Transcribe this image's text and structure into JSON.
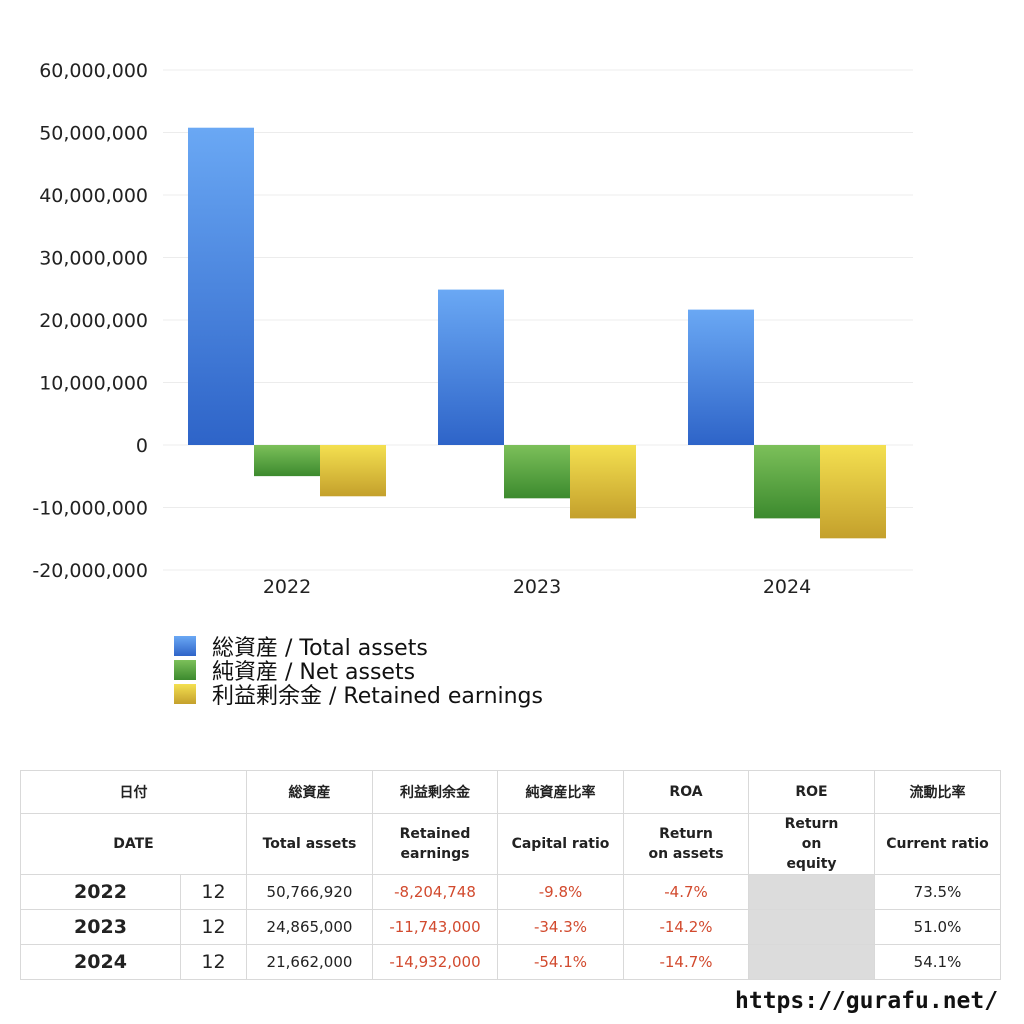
{
  "chart_data": {
    "type": "bar",
    "categories": [
      "2022",
      "2023",
      "2024"
    ],
    "series": [
      {
        "name": "総資産 / Total assets",
        "values": [
          50766920,
          24865000,
          21662000
        ],
        "color_top": "#6aa8f4",
        "color_bottom": "#2e64c8"
      },
      {
        "name": "純資産 / Net assets",
        "values": [
          -4980000,
          -8530000,
          -11740000
        ],
        "color_top": "#7cc05a",
        "color_bottom": "#3c8a2e"
      },
      {
        "name": "利益剰余金 / Retained earnings",
        "values": [
          -8204748,
          -11743000,
          -14932000
        ],
        "color_top": "#f4e050",
        "color_bottom": "#c4a02c"
      }
    ],
    "yticks": [
      "60,000,000",
      "50,000,000",
      "40,000,000",
      "30,000,000",
      "20,000,000",
      "10,000,000",
      "0",
      "-10,000,000",
      "-20,000,000"
    ],
    "ylim": [
      -20000000,
      60000000
    ],
    "grid": true,
    "legend": "bottom-left"
  },
  "table": {
    "headers_jp": [
      "日付",
      "総資産",
      "利益剰余金",
      "純資産比率",
      "ROA",
      "ROE",
      "流動比率"
    ],
    "headers_en": [
      "DATE",
      "Total assets",
      "Retained earnings",
      "Capital ratio",
      "Return on assets",
      "Return on equity",
      "Current ratio"
    ],
    "rows": [
      {
        "year": "2022",
        "month": "12",
        "total_assets": "50,766,920",
        "retained": "-8,204,748",
        "capital_ratio": "-9.8%",
        "roa": "-4.7%",
        "roe": "",
        "current_ratio": "73.5%"
      },
      {
        "year": "2023",
        "month": "12",
        "total_assets": "24,865,000",
        "retained": "-11,743,000",
        "capital_ratio": "-34.3%",
        "roa": "-14.2%",
        "roe": "",
        "current_ratio": "51.0%"
      },
      {
        "year": "2024",
        "month": "12",
        "total_assets": "21,662,000",
        "retained": "-14,932,000",
        "capital_ratio": "-54.1%",
        "roa": "-14.7%",
        "roe": "",
        "current_ratio": "54.1%"
      }
    ]
  },
  "footer": {
    "site": "https://gurafu.net/"
  }
}
